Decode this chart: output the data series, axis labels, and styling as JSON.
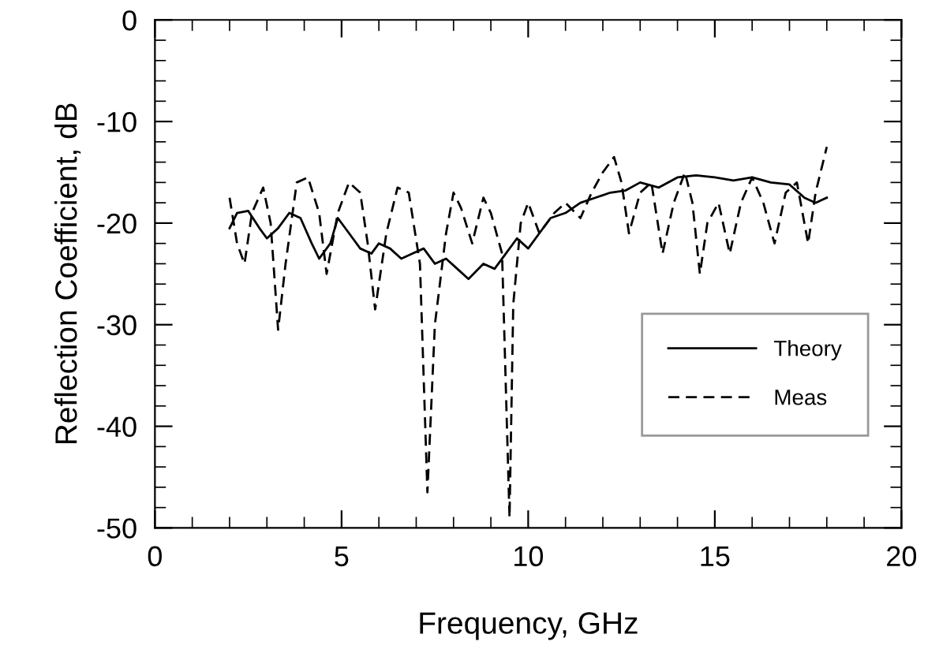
{
  "chart_data": {
    "type": "line",
    "xlabel": "Frequency, GHz",
    "ylabel": "Reflection Coefficient, dB",
    "xlim": [
      0,
      20
    ],
    "xticks": [
      0,
      5,
      10,
      15,
      20
    ],
    "ylim": [
      -50,
      0
    ],
    "yticks": [
      -50,
      -40,
      -30,
      -20,
      -10,
      0
    ],
    "grid": false,
    "legend": "bottom right",
    "marker": "none",
    "series": [
      {
        "name": "Theory",
        "color": "#000000",
        "line_style": "solid",
        "x": [
          2.0,
          2.2,
          2.5,
          2.8,
          3.0,
          3.3,
          3.6,
          3.9,
          4.2,
          4.4,
          4.7,
          4.9,
          5.2,
          5.5,
          5.8,
          6.0,
          6.3,
          6.6,
          6.9,
          7.2,
          7.5,
          7.8,
          8.1,
          8.4,
          8.8,
          9.1,
          9.4,
          9.7,
          10.0,
          10.3,
          10.6,
          11.0,
          11.4,
          11.8,
          12.2,
          12.6,
          13.0,
          13.5,
          14.0,
          14.5,
          15.0,
          15.5,
          16.0,
          16.5,
          17.0,
          17.4,
          17.7,
          18.0
        ],
        "values": [
          -20.5,
          -19,
          -18.8,
          -20.5,
          -21.5,
          -20.5,
          -19,
          -19.5,
          -22,
          -23.5,
          -22,
          -19.5,
          -21,
          -22.5,
          -23,
          -22,
          -22.5,
          -23.5,
          -23,
          -22.5,
          -24,
          -23.5,
          -24.5,
          -25.5,
          -24,
          -24.5,
          -23,
          -21.5,
          -22.5,
          -21,
          -19.5,
          -19,
          -18,
          -17.5,
          -17,
          -16.8,
          -16,
          -16.5,
          -15.5,
          -15.3,
          -15.5,
          -15.8,
          -15.5,
          -16,
          -16.2,
          -17.5,
          -18,
          -17.5
        ]
      },
      {
        "name": "Meas",
        "color": "#000000",
        "line_style": "dashed",
        "x": [
          2.0,
          2.2,
          2.4,
          2.6,
          2.9,
          3.1,
          3.3,
          3.5,
          3.8,
          4.1,
          4.4,
          4.6,
          4.9,
          5.2,
          5.5,
          5.7,
          5.9,
          6.2,
          6.5,
          6.8,
          7.1,
          7.3,
          7.5,
          7.8,
          8.0,
          8.2,
          8.5,
          8.8,
          9.0,
          9.3,
          9.5,
          9.6,
          9.8,
          10.0,
          10.3,
          10.7,
          11.0,
          11.4,
          11.7,
          12.0,
          12.3,
          12.5,
          12.7,
          13.0,
          13.3,
          13.6,
          13.9,
          14.2,
          14.4,
          14.6,
          14.8,
          15.1,
          15.4,
          15.7,
          16.0,
          16.3,
          16.6,
          16.9,
          17.2,
          17.5,
          17.7,
          18.0
        ],
        "values": [
          -17.5,
          -22,
          -24,
          -19,
          -16.5,
          -20,
          -30.5,
          -24,
          -16,
          -15.5,
          -19,
          -25,
          -19,
          -16,
          -17,
          -22,
          -28.5,
          -21,
          -16.5,
          -17,
          -24,
          -46.5,
          -30,
          -21,
          -17,
          -18.5,
          -22,
          -17.5,
          -19,
          -23,
          -49,
          -28,
          -20,
          -18,
          -21,
          -19,
          -18,
          -19.5,
          -17,
          -15,
          -13.5,
          -16,
          -21,
          -17,
          -16,
          -23,
          -18,
          -15,
          -18,
          -25,
          -20,
          -18,
          -23,
          -18,
          -15.5,
          -18,
          -22,
          -17,
          -16,
          -22,
          -17,
          -12.5
        ]
      }
    ]
  }
}
